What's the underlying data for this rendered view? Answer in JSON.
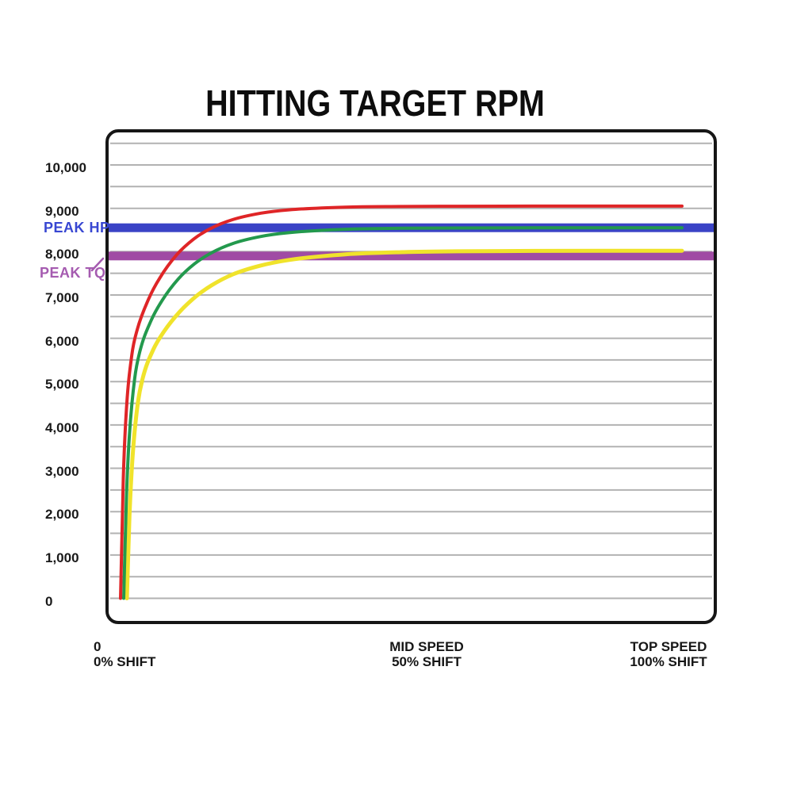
{
  "chart_data": {
    "type": "line",
    "title": "HITTING TARGET RPM",
    "xlabel": "",
    "ylabel": "",
    "ylim": [
      0,
      10500
    ],
    "grid_step_rpm": 500,
    "grid_color": "#b2b2b2",
    "y_axis": {
      "ticks": [
        "10,000",
        "9,000",
        "8,000",
        "7,000",
        "6,000",
        "5,000",
        "4,000",
        "3,000",
        "2,000",
        "1,000",
        "0"
      ],
      "tick_values": [
        10000,
        9000,
        8000,
        7000,
        6000,
        5000,
        4000,
        3000,
        2000,
        1000,
        0
      ]
    },
    "x_axis": {
      "range_percent": [
        0,
        100
      ],
      "labels": [
        {
          "line1": "0",
          "line2": "0% SHIFT",
          "percent": 0
        },
        {
          "line1": "MID SPEED",
          "line2": "50% SHIFT",
          "percent": 50
        },
        {
          "line1": "TOP SPEED",
          "line2": "100% SHIFT",
          "percent": 100
        }
      ]
    },
    "reference_bands": [
      {
        "label": "PEAK HP",
        "rpm": 8550,
        "color": "#3a43c6",
        "label_color": "#3847d2"
      },
      {
        "label": "PEAK TQ",
        "rpm": 7900,
        "color": "#a04ba4",
        "label_color": "#a55bb0"
      }
    ],
    "shift_percent": [
      0,
      0.5,
      1,
      2,
      3,
      5,
      7,
      10,
      13,
      16,
      20,
      25,
      30,
      40,
      50,
      60,
      75,
      100
    ],
    "series": [
      {
        "name": "yellow-curve",
        "color": "#f0e32b",
        "plateau_rpm": 8020,
        "rpm": [
          0,
          1917,
          3131,
          4448,
          5082,
          5744,
          6157,
          6616,
          6962,
          7223,
          7474,
          7680,
          7807,
          7937,
          7988,
          8007,
          8016,
          8020
        ]
      },
      {
        "name": "green-curve",
        "color": "#23994d",
        "plateau_rpm": 8550,
        "rpm": [
          0,
          2317,
          3686,
          5067,
          5712,
          6404,
          6866,
          7369,
          7720,
          7967,
          8187,
          8349,
          8438,
          8516,
          8540,
          8546,
          8549,
          8550
        ]
      },
      {
        "name": "red-curve",
        "color": "#df2527",
        "plateau_rpm": 9050,
        "rpm": [
          0,
          2779,
          4262,
          5610,
          6211,
          6906,
          7395,
          7926,
          8286,
          8531,
          8740,
          8887,
          8964,
          9026,
          9041,
          9047,
          9050,
          9050
        ]
      }
    ]
  }
}
